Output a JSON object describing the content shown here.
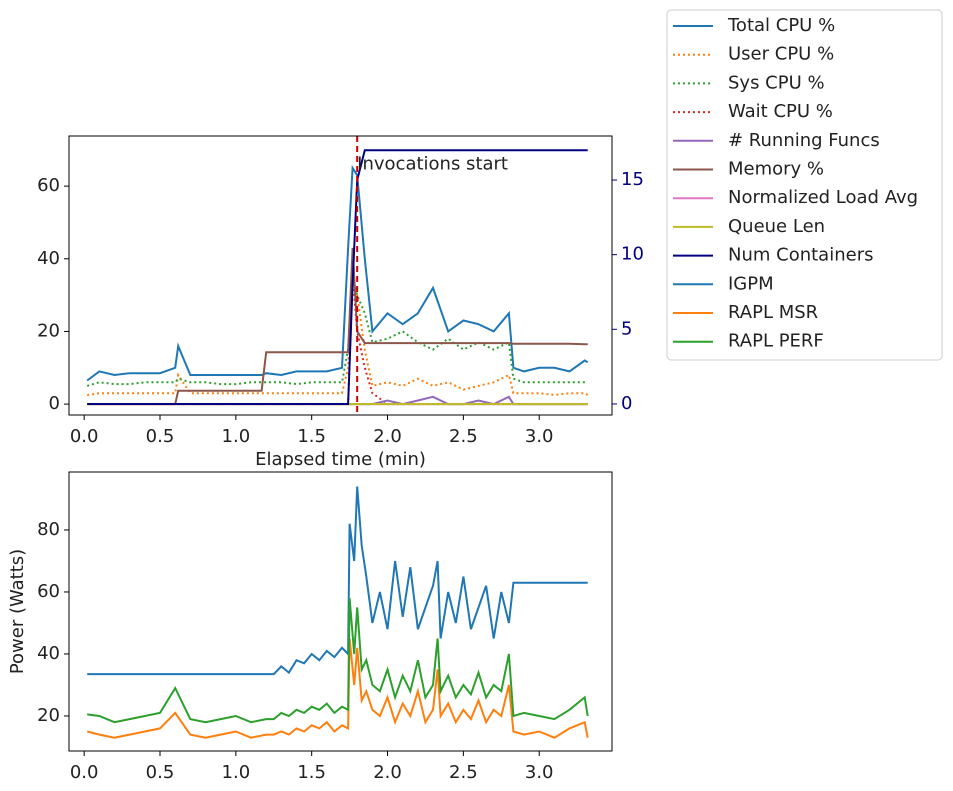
{
  "chart_data": [
    {
      "type": "line",
      "x_label": "Elapsed time (min)",
      "x": [
        0.02,
        0.1,
        0.2,
        0.3,
        0.4,
        0.5,
        0.6,
        0.62,
        0.7,
        0.8,
        0.9,
        1.0,
        1.1,
        1.17,
        1.2,
        1.3,
        1.4,
        1.5,
        1.6,
        1.7,
        1.74,
        1.77,
        1.8,
        1.85,
        1.9,
        2.0,
        2.1,
        2.2,
        2.3,
        2.4,
        2.5,
        2.6,
        2.7,
        2.8,
        2.83,
        2.9,
        3.0,
        3.1,
        3.2,
        3.3,
        3.32
      ],
      "xlim": [
        -0.1,
        3.48
      ],
      "xticks": [
        {
          "value": 0,
          "label": "0.0"
        },
        0.5,
        {
          "value": 1,
          "label": "1.0"
        },
        1.5,
        {
          "value": 2,
          "label": "2.0"
        },
        2.5,
        {
          "value": 3,
          "label": "3.0"
        }
      ],
      "ylim": [
        -3,
        73.8
      ],
      "yticks": [
        0,
        20,
        40,
        60
      ],
      "y2lim": [
        -0.74,
        17.95
      ],
      "y2ticks": [
        0,
        5,
        10,
        15
      ],
      "y2color": "#000080",
      "vline": {
        "x": 1.8,
        "color": "#cc0000"
      },
      "annotation": {
        "text": "Invocations start",
        "x": 1.8,
        "y": 66
      },
      "series": [
        {
          "name": "Total CPU %",
          "color": "#1f77b4",
          "linestyle": "solid",
          "values": [
            6.5,
            9,
            8,
            8.5,
            8.5,
            8.5,
            10,
            16,
            8,
            8,
            8,
            8,
            8,
            8,
            8.5,
            8,
            9,
            9,
            9,
            10,
            43,
            65,
            63,
            40,
            20,
            25,
            22,
            25,
            32,
            20,
            23,
            22,
            20,
            25,
            10,
            9,
            10,
            10,
            9,
            12,
            11.5
          ]
        },
        {
          "name": "User CPU %",
          "color": "#ff7f0e",
          "linestyle": "dotted",
          "values": [
            2.5,
            3,
            3,
            3,
            3,
            3,
            3,
            8,
            3,
            3,
            3,
            3,
            3,
            3,
            3,
            3,
            3,
            3,
            3,
            3,
            10,
            35,
            30,
            15,
            5,
            6,
            5,
            7,
            5,
            6,
            4,
            5,
            6,
            8,
            3,
            3,
            3,
            2.5,
            3,
            3,
            2.5
          ]
        },
        {
          "name": "Sys CPU %",
          "color": "#2ca02c",
          "linestyle": "dotted",
          "values": [
            5,
            6,
            5.5,
            5.5,
            6,
            6,
            6,
            7,
            6,
            6,
            5.5,
            5.5,
            6,
            6,
            6,
            6,
            5.5,
            6,
            6,
            6,
            15,
            35,
            30,
            25,
            17,
            18,
            20,
            17,
            15,
            18,
            15,
            17,
            15,
            17,
            7,
            6,
            6,
            6,
            6,
            6,
            6
          ]
        },
        {
          "name": "Wait CPU %",
          "color": "#d62728",
          "linestyle": "dotted",
          "values": [
            0,
            0,
            0,
            0,
            0,
            0,
            0,
            0,
            0,
            0,
            0,
            0,
            0,
            0,
            0,
            0,
            0,
            0,
            0,
            0,
            0,
            35,
            20,
            10,
            3,
            0,
            0,
            0,
            0,
            0,
            0,
            0,
            0,
            0,
            0,
            0,
            0,
            0,
            0,
            0,
            0
          ]
        },
        {
          "name": "# Running Funcs",
          "color": "#9467bd",
          "linestyle": "solid",
          "values": [
            0,
            0,
            0,
            0,
            0,
            0,
            0,
            0,
            0,
            0,
            0,
            0,
            0,
            0,
            0,
            0,
            0,
            0,
            0,
            0,
            0,
            0,
            0,
            0,
            0,
            1,
            0,
            1,
            2,
            0,
            0,
            1,
            0,
            2,
            0,
            0,
            0,
            0,
            0,
            0,
            0
          ]
        },
        {
          "name": "Memory %",
          "color": "#8c564b",
          "linestyle": "solid",
          "values": [
            0,
            0,
            0,
            0,
            0,
            0,
            0,
            3.7,
            3.7,
            3.7,
            3.7,
            3.7,
            3.7,
            3.7,
            14.3,
            14.3,
            14.3,
            14.3,
            14.3,
            14.3,
            14.3,
            43,
            20,
            16.8,
            16.8,
            16.8,
            16.8,
            16.8,
            16.8,
            16.8,
            16.8,
            16.8,
            16.8,
            16.8,
            16.6,
            16.6,
            16.6,
            16.6,
            16.6,
            16.5,
            16.5
          ]
        },
        {
          "name": "Normalized Load Avg",
          "color": "#e377c2",
          "linestyle": "solid",
          "values": [
            0,
            0,
            0,
            0,
            0,
            0,
            0,
            0,
            0,
            0,
            0,
            0,
            0,
            0,
            0,
            0,
            0,
            0,
            0,
            0,
            0,
            0,
            0,
            0,
            0,
            0,
            0,
            0,
            0,
            0,
            0,
            0,
            0,
            0,
            0,
            0,
            0,
            0,
            0,
            0,
            0
          ]
        },
        {
          "name": "Queue Len",
          "color": "#bcbd22",
          "linestyle": "solid",
          "values": [
            0,
            0,
            0,
            0,
            0,
            0,
            0,
            0,
            0,
            0,
            0,
            0,
            0,
            0,
            0,
            0,
            0,
            0,
            0,
            0,
            0,
            0,
            0,
            0,
            0,
            0,
            0,
            0,
            0,
            0,
            0,
            0,
            0,
            0,
            0,
            0,
            0,
            0,
            0,
            0,
            0
          ]
        },
        {
          "name": "Num Containers",
          "color": "#000080",
          "linestyle": "solid",
          "axis": "y2",
          "values": [
            0,
            0,
            0,
            0,
            0,
            0,
            0,
            0,
            0,
            0,
            0,
            0,
            0,
            0,
            0,
            0,
            0,
            0,
            0,
            0,
            0,
            8,
            15,
            17,
            17,
            17,
            17,
            17,
            17,
            17,
            17,
            17,
            17,
            17,
            17,
            17,
            17,
            17,
            17,
            17,
            17
          ]
        }
      ]
    },
    {
      "type": "line",
      "y_label": "Power (Watts)",
      "x": [
        0.02,
        0.1,
        0.2,
        0.3,
        0.4,
        0.5,
        0.6,
        0.7,
        0.8,
        0.9,
        1.0,
        1.1,
        1.2,
        1.25,
        1.3,
        1.35,
        1.4,
        1.45,
        1.5,
        1.55,
        1.6,
        1.65,
        1.7,
        1.74,
        1.75,
        1.78,
        1.8,
        1.83,
        1.86,
        1.9,
        1.95,
        2.0,
        2.05,
        2.1,
        2.15,
        2.2,
        2.25,
        2.3,
        2.33,
        2.35,
        2.4,
        2.45,
        2.5,
        2.55,
        2.6,
        2.65,
        2.7,
        2.75,
        2.8,
        2.83,
        2.9,
        3.0,
        3.1,
        3.2,
        3.3,
        3.32
      ],
      "xlim": [
        -0.1,
        3.48
      ],
      "xticks": [
        {
          "value": 0,
          "label": "0.0"
        },
        0.5,
        {
          "value": 1,
          "label": "1.0"
        },
        1.5,
        {
          "value": 2,
          "label": "2.0"
        },
        2.5,
        {
          "value": 3,
          "label": "3.0"
        }
      ],
      "ylim": [
        8.7,
        98.7
      ],
      "yticks": [
        20,
        40,
        60,
        80
      ],
      "series": [
        {
          "name": "IGPM",
          "color": "#1f77b4",
          "linestyle": "solid",
          "values": [
            33.5,
            33.5,
            33.5,
            33.5,
            33.5,
            33.5,
            33.5,
            33.5,
            33.5,
            33.5,
            33.5,
            33.5,
            33.5,
            33.5,
            36,
            34,
            38,
            37,
            40,
            38,
            41,
            39,
            42,
            40,
            82,
            70,
            94,
            75,
            65,
            50,
            60,
            48,
            70,
            52,
            68,
            48,
            55,
            62,
            70,
            45,
            60,
            50,
            65,
            48,
            55,
            62,
            45,
            60,
            50,
            63,
            63,
            63,
            63,
            63,
            63,
            63
          ]
        },
        {
          "name": "RAPL MSR",
          "color": "#ff7f0e",
          "linestyle": "solid",
          "values": [
            15,
            14,
            13,
            14,
            15,
            16,
            21,
            14,
            13,
            14,
            15,
            13,
            14,
            14,
            15,
            14,
            16,
            15,
            17,
            16,
            18,
            15,
            17,
            16,
            45,
            30,
            42,
            25,
            28,
            22,
            20,
            26,
            18,
            24,
            20,
            28,
            18,
            22,
            35,
            20,
            24,
            18,
            22,
            19,
            25,
            18,
            22,
            20,
            30,
            15,
            14,
            15,
            13,
            16,
            18,
            13
          ]
        },
        {
          "name": "RAPL PERF",
          "color": "#2ca02c",
          "linestyle": "solid",
          "values": [
            20.5,
            20,
            18,
            19,
            20,
            21,
            29,
            19,
            18,
            19,
            20,
            18,
            19,
            19,
            21,
            20,
            22,
            21,
            23,
            22,
            24,
            21,
            23,
            22,
            58,
            40,
            55,
            35,
            38,
            30,
            28,
            35,
            26,
            33,
            28,
            38,
            26,
            30,
            45,
            28,
            33,
            26,
            30,
            27,
            34,
            26,
            30,
            28,
            40,
            20,
            21,
            20,
            19,
            22,
            26,
            20
          ]
        }
      ]
    }
  ]
}
